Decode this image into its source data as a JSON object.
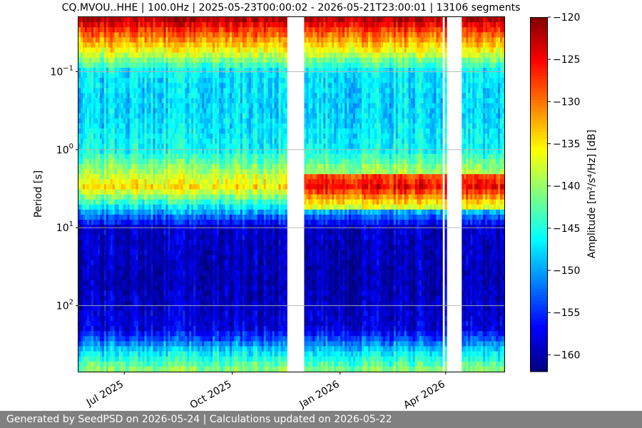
{
  "chart_data": {
    "type": "heatmap",
    "title": "CQ.MVOU..HHE | 100.0Hz | 2025-05-23T00:00:02 - 2026-05-21T23:00:01 | 13106 segments",
    "ylabel": "Period [s]",
    "colorbar_label": "Amplitude [m²/s⁴/Hz] [dB]",
    "colormap": "jet",
    "clim": [
      -162,
      -120
    ],
    "colorbar_ticks": [
      "−120",
      "−125",
      "−130",
      "−135",
      "−140",
      "−145",
      "−150",
      "−155",
      "−160"
    ],
    "colorbar_tick_values": [
      -120,
      -125,
      -130,
      -135,
      -140,
      -145,
      -150,
      -155,
      -160
    ],
    "x_range": [
      "2025-05-23",
      "2026-05-21"
    ],
    "x_ticks": [
      {
        "date": "2025-07-01",
        "label": "Jul 2025"
      },
      {
        "date": "2025-10-01",
        "label": "Oct 2025"
      },
      {
        "date": "2026-01-01",
        "label": "Jan 2026"
      },
      {
        "date": "2026-04-01",
        "label": "Apr 2026"
      }
    ],
    "y_scale": "log",
    "y_inverted": true,
    "y_range": [
      0.02,
      700
    ],
    "y_ticks": [
      {
        "value": 0.1,
        "base": "10",
        "exp": "−1"
      },
      {
        "value": 1,
        "base": "10",
        "exp": "0"
      },
      {
        "value": 10,
        "base": "10",
        "exp": "1"
      },
      {
        "value": 100,
        "base": "10",
        "exp": "2"
      }
    ],
    "grid": true,
    "data_gaps": [
      [
        "2025-11-16",
        "2025-12-02"
      ],
      [
        "2026-03-30",
        "2026-04-01"
      ],
      [
        "2026-04-02",
        "2026-04-14"
      ]
    ],
    "amplitude_by_period": [
      {
        "period": 0.02,
        "db": -121
      },
      {
        "period": 0.03,
        "db": -128
      },
      {
        "period": 0.05,
        "db": -135
      },
      {
        "period": 0.1,
        "db": -147
      },
      {
        "period": 0.3,
        "db": -148
      },
      {
        "period": 1,
        "db": -146
      },
      {
        "period": 3,
        "db": -135
      },
      {
        "period": 7,
        "db": -152
      },
      {
        "period": 10,
        "db": -159
      },
      {
        "period": 50,
        "db": -160
      },
      {
        "period": 200,
        "db": -158
      },
      {
        "period": 400,
        "db": -147
      },
      {
        "period": 700,
        "db": -140
      }
    ]
  },
  "footer": {
    "text": "Generated by SeedPSD on 2026-05-24 | Calculations updated on 2026-05-22"
  }
}
